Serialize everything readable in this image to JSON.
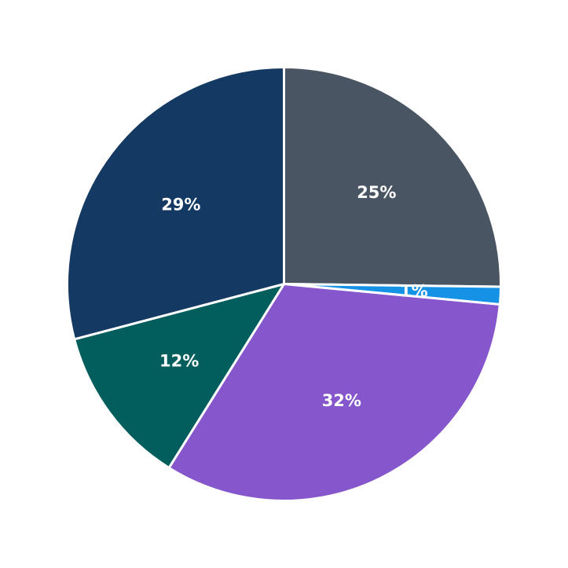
{
  "chart_data": {
    "type": "pie",
    "start_angle_deg": 90,
    "direction": "clockwise",
    "legend": "none",
    "slices": [
      {
        "label": "25%",
        "value": 25.2,
        "color": "#4a5563"
      },
      {
        "label": "1%",
        "value": 1.3,
        "color": "#1592e6"
      },
      {
        "label": "32%",
        "value": 32.4,
        "color": "#8556cc"
      },
      {
        "label": "12%",
        "value": 12.0,
        "color": "#025e5c"
      },
      {
        "label": "29%",
        "value": 29.1,
        "color": "#143962"
      }
    ]
  }
}
